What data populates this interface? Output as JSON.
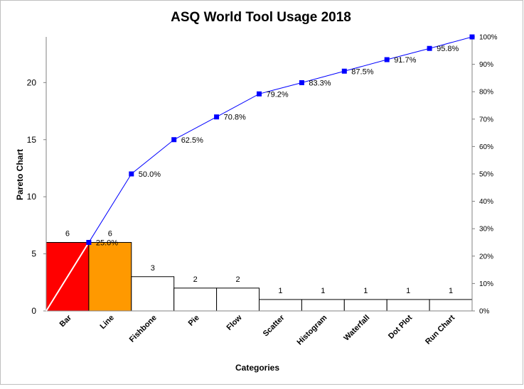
{
  "chart_data": {
    "type": "bar",
    "title": "ASQ World Tool Usage 2018",
    "xlabel": "Categories",
    "ylabel": "Pareto Chart",
    "categories": [
      "Bar",
      "Line",
      "Fishbone",
      "Pie",
      "Flow",
      "Scatter",
      "Histogram",
      "Waterfall",
      "Dot Plot",
      "Run Chart"
    ],
    "values": [
      6,
      6,
      3,
      2,
      2,
      1,
      1,
      1,
      1,
      1
    ],
    "bar_colors": [
      "#ff0000",
      "#ff9900",
      "#ffffff",
      "#ffffff",
      "#ffffff",
      "#ffffff",
      "#ffffff",
      "#ffffff",
      "#ffffff",
      "#ffffff"
    ],
    "ylim": [
      0,
      24
    ],
    "yticks": [
      0,
      5,
      10,
      15,
      20
    ],
    "cumulative_series": {
      "color": "#0000ff",
      "values": [
        25.0,
        50.0,
        62.5,
        70.8,
        79.2,
        83.3,
        87.5,
        91.7,
        95.8,
        100.0
      ],
      "labels": [
        "25.0%",
        "50.0%",
        "62.5%",
        "70.8%",
        "79.2%",
        "83.3%",
        "87.5%",
        "91.7%",
        "95.8%",
        ""
      ]
    },
    "y2lim": [
      0,
      100
    ],
    "y2ticks": [
      "0%",
      "10%",
      "20%",
      "30%",
      "40%",
      "50%",
      "60%",
      "70%",
      "80%",
      "90%",
      "100%"
    ],
    "grid": false,
    "legend": "none"
  }
}
